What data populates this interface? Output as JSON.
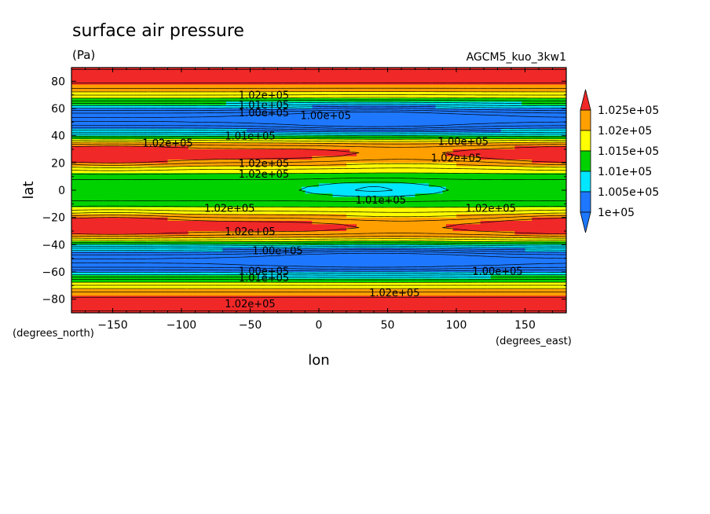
{
  "chart_data": {
    "type": "heatmap",
    "title": "surface air pressure",
    "units": "(Pa)",
    "run_label": "AGCM5_kuo_3kw1",
    "xlabel": "lon",
    "ylabel": "lat",
    "x_units": "(degrees_east)",
    "y_units": "(degrees_north)",
    "xlim": [
      -180,
      180
    ],
    "ylim": [
      -90,
      90
    ],
    "x_ticks": [
      -150,
      -100,
      -50,
      0,
      50,
      100,
      150
    ],
    "y_ticks": [
      -80,
      -60,
      -40,
      -20,
      0,
      20,
      40,
      60,
      80
    ],
    "x_tick_labels": [
      "−150",
      "−100",
      "−50",
      "0",
      "50",
      "100",
      "150"
    ],
    "y_tick_labels": [
      "−80",
      "−60",
      "−40",
      "−20",
      "0",
      "20",
      "40",
      "60",
      "80"
    ],
    "colorbar": {
      "levels": [
        100000,
        100500,
        101000,
        101500,
        102000,
        102500
      ],
      "labels": [
        "1e+05",
        "1.005e+05",
        "1.01e+05",
        "1.015e+05",
        "1.02e+05",
        "1.025e+05"
      ],
      "colors": [
        "#1e78ff",
        "#00e6ff",
        "#00d200",
        "#ffff00",
        "#ffa000",
        "#f02828"
      ],
      "below_color": "#1e78ff",
      "above_color": "#f02828"
    },
    "contour_labels": [
      {
        "text": "1.02e+05",
        "lon": -40,
        "lat": 70
      },
      {
        "text": "1.01e+05",
        "lon": -40,
        "lat": 63
      },
      {
        "text": "1.00e+05",
        "lon": -40,
        "lat": 57
      },
      {
        "text": "1.00e+05",
        "lon": 5,
        "lat": 55
      },
      {
        "text": "1.00e+05",
        "lon": 105,
        "lat": 36
      },
      {
        "text": "1.01e+05",
        "lon": -50,
        "lat": 40
      },
      {
        "text": "1.02e+05",
        "lon": -110,
        "lat": 35
      },
      {
        "text": "1.02e+05",
        "lon": -40,
        "lat": 20
      },
      {
        "text": "1.02e+05",
        "lon": -40,
        "lat": 12
      },
      {
        "text": "1.02e+05",
        "lon": 100,
        "lat": 24
      },
      {
        "text": "1.01e+05",
        "lon": 45,
        "lat": -7
      },
      {
        "text": "1.02e+05",
        "lon": -65,
        "lat": -13
      },
      {
        "text": "1.02e+05",
        "lon": 125,
        "lat": -13
      },
      {
        "text": "1.02e+05",
        "lon": -50,
        "lat": -30
      },
      {
        "text": "1.00e+05",
        "lon": -30,
        "lat": -44
      },
      {
        "text": "1.00e+05",
        "lon": -40,
        "lat": -59
      },
      {
        "text": "1.01e+05",
        "lon": -40,
        "lat": -64
      },
      {
        "text": "1.00e+05",
        "lon": 130,
        "lat": -59
      },
      {
        "text": "1.02e+05",
        "lon": 55,
        "lat": -75
      },
      {
        "text": "1.02e+05",
        "lon": -50,
        "lat": -83
      }
    ]
  }
}
